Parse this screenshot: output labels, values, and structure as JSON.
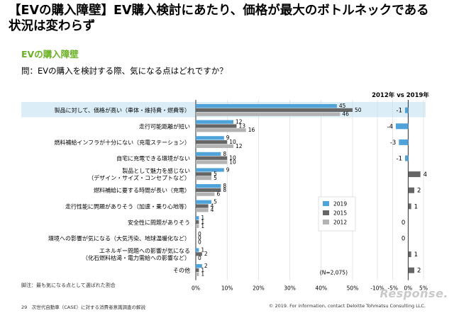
{
  "title": "【EVの購入障壁】EV購入検討にあたり、価格が最大のボトルネックである状況は変わらず",
  "section_label": "EVの購入障壁",
  "question": "問：EVの購入を検討する際、気になる点はどれですか？",
  "footnote": "脚注：最も気になる点として選ばれた割合",
  "page_footer": "29　次世代自動車（CASE）に対する消費者意識調査の解説",
  "copyright": "© 2019. For information, contact Deloitte Tohmatsu Consulting LLC.",
  "watermark": "Response.",
  "colors": {
    "2019": "#4fa3d9",
    "2015": "#666666",
    "2012": "#b3b3b3",
    "highlight": "#dbeef8",
    "title_green": "#6ab023"
  },
  "chart_data": {
    "type": "bar",
    "orientation": "horizontal",
    "categories": [
      [
        "製品に対して、価格が高い（車体・維持費・燃費等）"
      ],
      [
        "走行可能距離が短い"
      ],
      [
        "燃料補給インフラが十分にない（充電ステーション）"
      ],
      [
        "自宅に充電できる環境がない"
      ],
      [
        "製品として魅力を感じない",
        "（デザイン・サイズ・コンセプトなど）"
      ],
      [
        "燃料補給に要する時間が長い（充電）"
      ],
      [
        "走行性能に問題がありそう（加速・乗り心地等）"
      ],
      [
        "安全性に問題がありそう"
      ],
      [
        "環境への影響が気になる（大気汚染、地球温暖化など）"
      ],
      [
        "エネルギー問題への影響が気になる",
        "（化石燃料枯渇・電力需給への影響など）"
      ],
      [
        "その他"
      ]
    ],
    "series": [
      {
        "name": "2019",
        "values": [
          45,
          12,
          9,
          8,
          9,
          8,
          5,
          1,
          0,
          1,
          2
        ]
      },
      {
        "name": "2015",
        "values": [
          50,
          13,
          10,
          10,
          5,
          8,
          4,
          1,
          0,
          2,
          1
        ]
      },
      {
        "name": "2012",
        "values": [
          46,
          16,
          12,
          10,
          5,
          6,
          4,
          1,
          0,
          0,
          1
        ]
      }
    ],
    "xlim": [
      0,
      50
    ],
    "xticks": [
      "0%",
      "10%",
      "20%",
      "30%",
      "40%",
      "50%"
    ],
    "n_note": "(N=2,075)",
    "legend": [
      "2019",
      "2015",
      "2012"
    ],
    "legend_position": "bottom-right",
    "highlight_category_index": 0,
    "diff_panel": {
      "title": "2012年 vs 2019年",
      "values": [
        -1,
        -4,
        -3,
        -1,
        4,
        2,
        1,
        0,
        0,
        1,
        2
      ],
      "xlim": [
        -10,
        5
      ],
      "xticks": [
        "-10%",
        "-5%",
        "0%",
        "5%"
      ]
    }
  }
}
